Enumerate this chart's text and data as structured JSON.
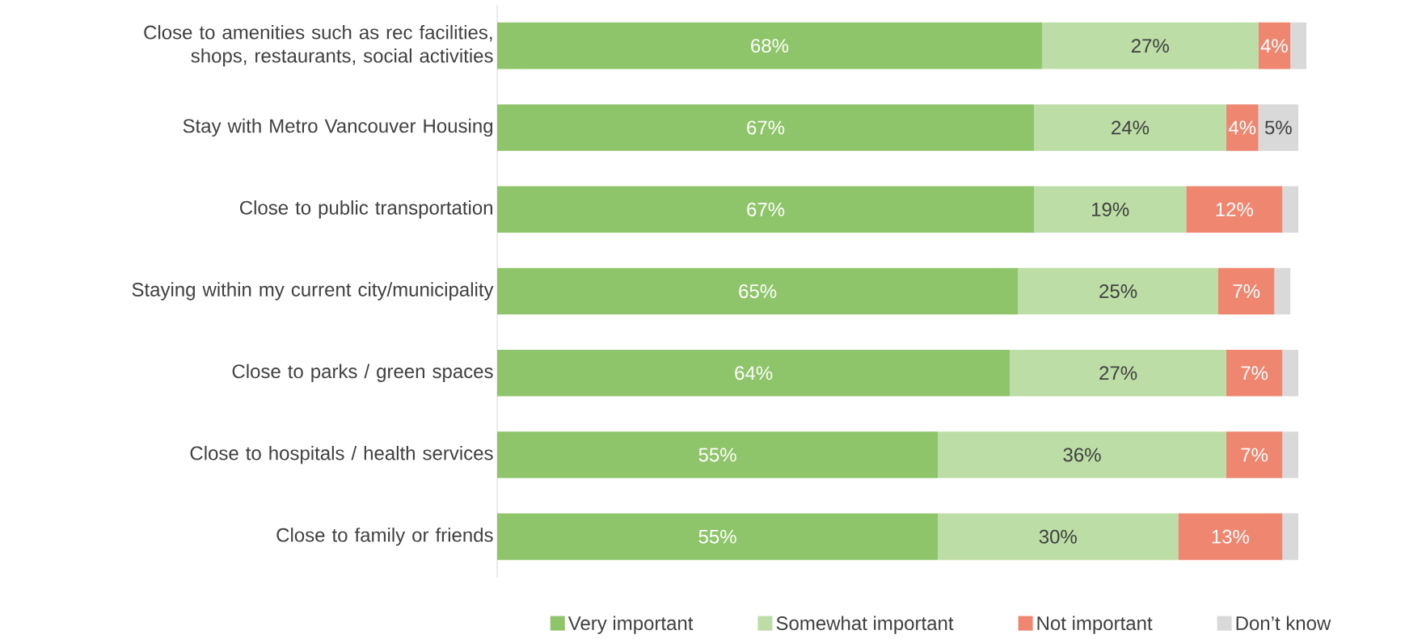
{
  "chart_data": {
    "type": "bar",
    "orientation": "horizontal",
    "stacked": true,
    "legend": "bottom",
    "categories": [
      "Close to amenities such as rec facilities, shops, restaurants, social activities",
      "Stay with Metro Vancouver Housing",
      "Close to public transportation",
      "Staying within my current city/municipality",
      "Close to parks / green spaces",
      "Close to hospitals / health services",
      "Close to family or friends"
    ],
    "series": [
      {
        "name": "Very important",
        "color": "#8fc56a",
        "values": [
          68,
          67,
          67,
          65,
          64,
          55,
          55
        ],
        "value_labels": [
          "68%",
          "67%",
          "67%",
          "65%",
          "64%",
          "55%",
          "55%"
        ]
      },
      {
        "name": "Somewhat important",
        "color": "#bcdda5",
        "values": [
          27,
          24,
          19,
          25,
          27,
          36,
          30
        ],
        "value_labels": [
          "27%",
          "24%",
          "19%",
          "25%",
          "27%",
          "36%",
          "30%"
        ]
      },
      {
        "name": "Not important",
        "color": "#ee8670",
        "values": [
          4,
          4,
          12,
          7,
          7,
          7,
          13
        ],
        "value_labels": [
          "4%",
          "4%",
          "12%",
          "7%",
          "7%",
          "7%",
          "13%"
        ]
      },
      {
        "name": "Don’t know",
        "color": "#d9d9d9",
        "values": [
          2,
          5,
          2,
          2,
          2,
          2,
          2
        ],
        "value_labels": [
          null,
          "5%",
          null,
          null,
          null,
          null,
          null
        ]
      }
    ]
  }
}
